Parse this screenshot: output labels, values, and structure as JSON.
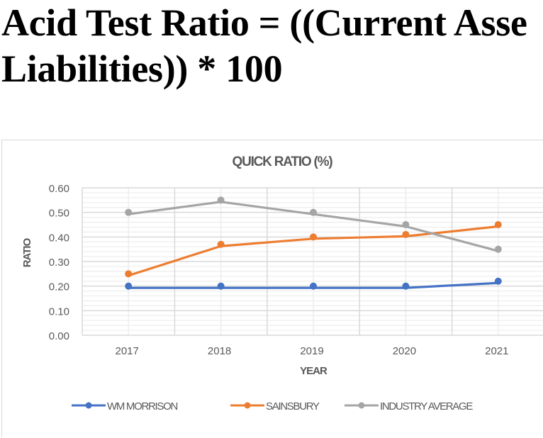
{
  "heading": {
    "line1": "Acid Test Ratio = ((Current Asse",
    "line2": "Liabilities)) * 100"
  },
  "colors": {
    "wm_morrison": "#4472C4",
    "sainsbury": "#ED7D31",
    "industry_average": "#A5A5A5",
    "text": "#595959",
    "grid_major": "#D9D9D9",
    "grid_minor": "#EDEDED"
  },
  "chart_data": {
    "type": "line",
    "title": "QUICK RATIO (%)",
    "xlabel": "YEAR",
    "ylabel": "RATIO",
    "categories": [
      "2017",
      "2018",
      "2019",
      "2020",
      "2021"
    ],
    "ylim": [
      0,
      0.6
    ],
    "yticks": [
      "0.00",
      "0.10",
      "0.20",
      "0.30",
      "0.40",
      "0.50",
      "0.60"
    ],
    "grid": {
      "major_y": 0.1,
      "minor_y": 0.02,
      "vertical": true
    },
    "legend_position": "bottom",
    "series": [
      {
        "name": "WM MORRISON",
        "key": "wm_morrison",
        "values": [
          0.2,
          0.2,
          0.2,
          0.2,
          0.22
        ]
      },
      {
        "name": "SAINSBURY",
        "key": "sainsbury",
        "values": [
          0.25,
          0.37,
          0.4,
          0.41,
          0.45
        ]
      },
      {
        "name": "INDUSTRY AVERAGE",
        "key": "industry_average",
        "values": [
          0.5,
          0.55,
          0.5,
          0.45,
          0.35
        ]
      }
    ]
  }
}
